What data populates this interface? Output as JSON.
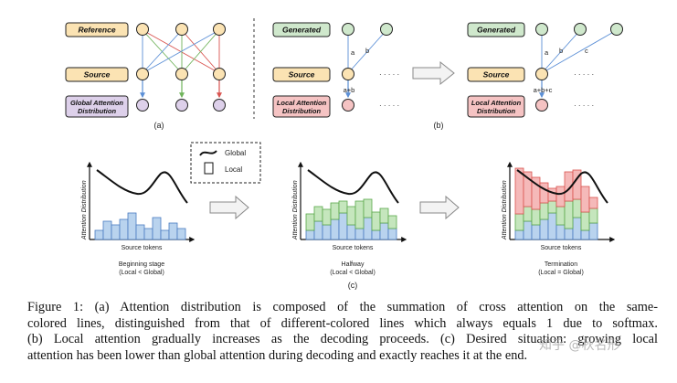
{
  "panel_a": {
    "reference_label": "Reference",
    "source_label": "Source",
    "attention_label_line1": "Global Attention",
    "attention_label_line2": "Distribution",
    "subfig_label": "(a)"
  },
  "panel_b": {
    "generated_label": "Generated",
    "source_label": "Source",
    "attention_label_line1": "Local Attention",
    "attention_label_line2": "Distribution",
    "edge_a": "a",
    "edge_b": "b",
    "edge_c": "c",
    "sum_left": "a+b",
    "sum_right": "a+b+c",
    "ellipsis": "· · · · ·",
    "subfig_label": "(b)"
  },
  "panel_c": {
    "legend_global": "Global",
    "legend_local": "Local",
    "y_axis_label": "Attention Distribution",
    "x_axis_label": "Source tokens",
    "stages": [
      {
        "name": "Beginning stage",
        "relation": "(Local < Global)"
      },
      {
        "name": "Halfway",
        "relation": "(Local < Global)"
      },
      {
        "name": "Termination",
        "relation": "(Local = Global)"
      }
    ],
    "subfig_label": "(c)"
  },
  "colors": {
    "reference_fill": "#fbe3b3",
    "generated_fill": "#cfe8cc",
    "source_fill": "#fbe3b3",
    "global_fill": "#ddd0ea",
    "local_fill": "#f5c3c3",
    "blue_bar": "#b9d3ee",
    "green_bar": "#c5e6bd",
    "red_bar": "#f5b9b9"
  },
  "caption": {
    "line1": "Figure 1: (a) Attention distribution is composed of the summation of cross attention on the same-",
    "line2": "colored lines, distinguished from that of different-colored lines which always equals 1 due to softmax.",
    "line3": "(b) Local attention gradually increases as the decoding proceeds. (c) Desired situation: growing local",
    "line4": "attention has been lower than global attention during decoding and exactly reaches it at the end."
  },
  "watermark": "知乎 @秋名形"
}
